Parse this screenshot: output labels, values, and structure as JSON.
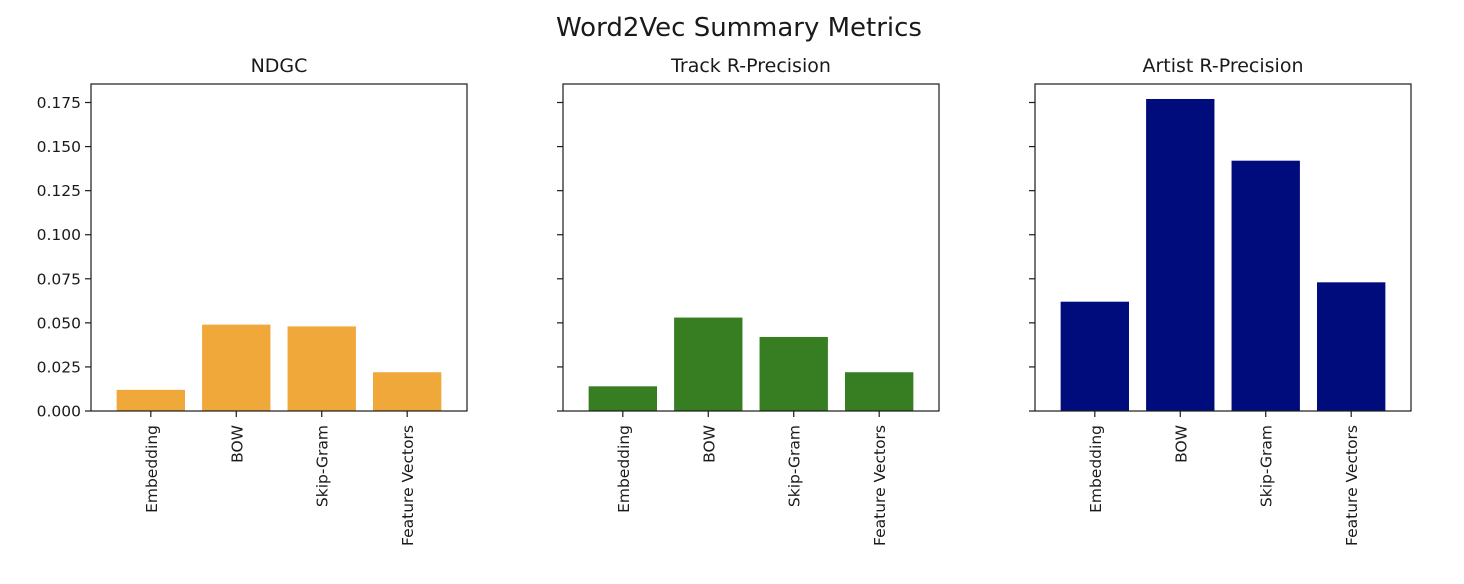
{
  "figure": {
    "title": "Word2Vec Summary Metrics"
  },
  "chart_data": [
    {
      "type": "bar",
      "title": "NDGC",
      "xlabel": "",
      "ylabel": "",
      "categories": [
        "Embedding",
        "BOW",
        "Skip-Gram",
        "Feature Vectors"
      ],
      "values": [
        0.012,
        0.049,
        0.048,
        0.022
      ],
      "color": "#F1A83B",
      "ylim": [
        0,
        0.1855
      ],
      "yticks": [
        0.0,
        0.025,
        0.05,
        0.075,
        0.1,
        0.125,
        0.15,
        0.175
      ],
      "ytick_labels": [
        "0.000",
        "0.025",
        "0.050",
        "0.075",
        "0.100",
        "0.125",
        "0.150",
        "0.175"
      ],
      "show_ytick_labels": true,
      "grid": false
    },
    {
      "type": "bar",
      "title": "Track R-Precision",
      "xlabel": "",
      "ylabel": "",
      "categories": [
        "Embedding",
        "BOW",
        "Skip-Gram",
        "Feature Vectors"
      ],
      "values": [
        0.014,
        0.053,
        0.042,
        0.022
      ],
      "color": "#377E22",
      "ylim": [
        0,
        0.1855
      ],
      "yticks": [
        0.0,
        0.025,
        0.05,
        0.075,
        0.1,
        0.125,
        0.15,
        0.175
      ],
      "ytick_labels": [
        "0.000",
        "0.025",
        "0.050",
        "0.075",
        "0.100",
        "0.125",
        "0.150",
        "0.175"
      ],
      "show_ytick_labels": false,
      "grid": false
    },
    {
      "type": "bar",
      "title": "Artist R-Precision",
      "xlabel": "",
      "ylabel": "",
      "categories": [
        "Embedding",
        "BOW",
        "Skip-Gram",
        "Feature Vectors"
      ],
      "values": [
        0.062,
        0.177,
        0.142,
        0.073
      ],
      "color": "#000C7B",
      "ylim": [
        0,
        0.1855
      ],
      "yticks": [
        0.0,
        0.025,
        0.05,
        0.075,
        0.1,
        0.125,
        0.15,
        0.175
      ],
      "ytick_labels": [
        "0.000",
        "0.025",
        "0.050",
        "0.075",
        "0.100",
        "0.125",
        "0.150",
        "0.175"
      ],
      "show_ytick_labels": false,
      "grid": false
    }
  ]
}
